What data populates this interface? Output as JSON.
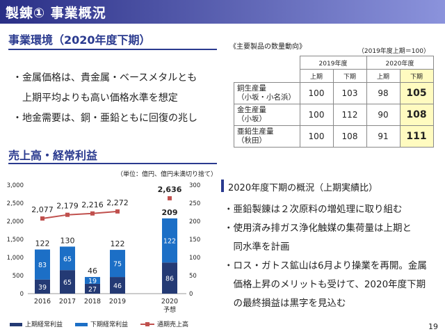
{
  "header": {
    "title": "製錬① 事業概況"
  },
  "business_env": {
    "title": "事業環境（2020年度下期）",
    "bullets": [
      "・金属価格は、貴金属・ベースメタルとも",
      "　上期平均よりも高い価格水準を想定",
      "・地金需要は、銅・亜鉛ともに回復の兆し"
    ]
  },
  "product_table": {
    "caption": "《主要製品の数量動向》",
    "note": "（2019年度上期＝100）",
    "years": [
      "2019年度",
      "2020年度"
    ],
    "halves": [
      "上期",
      "下期",
      "上期",
      "下期"
    ],
    "rows": [
      {
        "label_1": "銅生産量",
        "label_2": "（小坂・小名浜）",
        "values": [
          "100",
          "103",
          "98",
          "105"
        ]
      },
      {
        "label_1": "金生産量",
        "label_2": "（小坂）",
        "values": [
          "100",
          "112",
          "90",
          "108"
        ]
      },
      {
        "label_1": "亜鉛生産量",
        "label_2": "（秋田）",
        "values": [
          "100",
          "108",
          "91",
          "111"
        ]
      }
    ]
  },
  "sales_section": {
    "title": "売上高・経常利益",
    "unit_note": "（単位：億円、億円未満切り捨て）"
  },
  "chart_data": {
    "type": "bar",
    "categories": [
      "2016",
      "2017",
      "2018",
      "2019",
      "2020"
    ],
    "category_sublabels": [
      "",
      "",
      "",
      "",
      "予想"
    ],
    "series": [
      {
        "name": "上期経常利益",
        "type": "bar",
        "axis": "right",
        "values": [
          39,
          65,
          27,
          46,
          86
        ]
      },
      {
        "name": "下期経常利益",
        "type": "bar",
        "axis": "right",
        "values": [
          83,
          65,
          19,
          75,
          122
        ]
      },
      {
        "name": "通期売上高",
        "type": "line",
        "axis": "left",
        "values": [
          2077,
          2179,
          2216,
          2272,
          null
        ]
      }
    ],
    "bar_totals": [
      122,
      130,
      46,
      122,
      209
    ],
    "forecast_sales": 2636,
    "value_labels": {
      "line": [
        "2,077",
        "2,179",
        "2,216",
        "2,272",
        "2,636"
      ],
      "h1": [
        "39",
        "65",
        "27",
        "46",
        "86"
      ],
      "h2": [
        "83",
        "65",
        "19",
        "75",
        "122"
      ],
      "totals": [
        "122",
        "130",
        "46",
        "122",
        "209"
      ]
    },
    "y_left": {
      "min": 0,
      "max": 3000,
      "ticks": [
        "0",
        "500",
        "1,000",
        "1,500",
        "2,000",
        "2,500",
        "3,000"
      ]
    },
    "y_right": {
      "min": 0,
      "max": 300,
      "ticks": [
        "0",
        "50",
        "100",
        "150",
        "200",
        "250",
        "300"
      ]
    },
    "colors": {
      "h1": "#243a74",
      "h2": "#1c6fc6",
      "line": "#c0504d",
      "axis": "#999999"
    },
    "legend_position": "bottom"
  },
  "overview": {
    "title": "2020年度下期の概況（上期実績比）",
    "bullets": [
      "・亜鉛製錬は２次原料の増処理に取り組む",
      "・使用済み排ガス浄化触媒の集荷量は上期と",
      "　同水準を計画",
      "・ロス・ガトス鉱山は6月より操業を再開。金属",
      "　価格上昇のメリットも受けて、2020年度下期",
      "　の最終損益は黒字を見込む"
    ]
  },
  "page_number": "19"
}
